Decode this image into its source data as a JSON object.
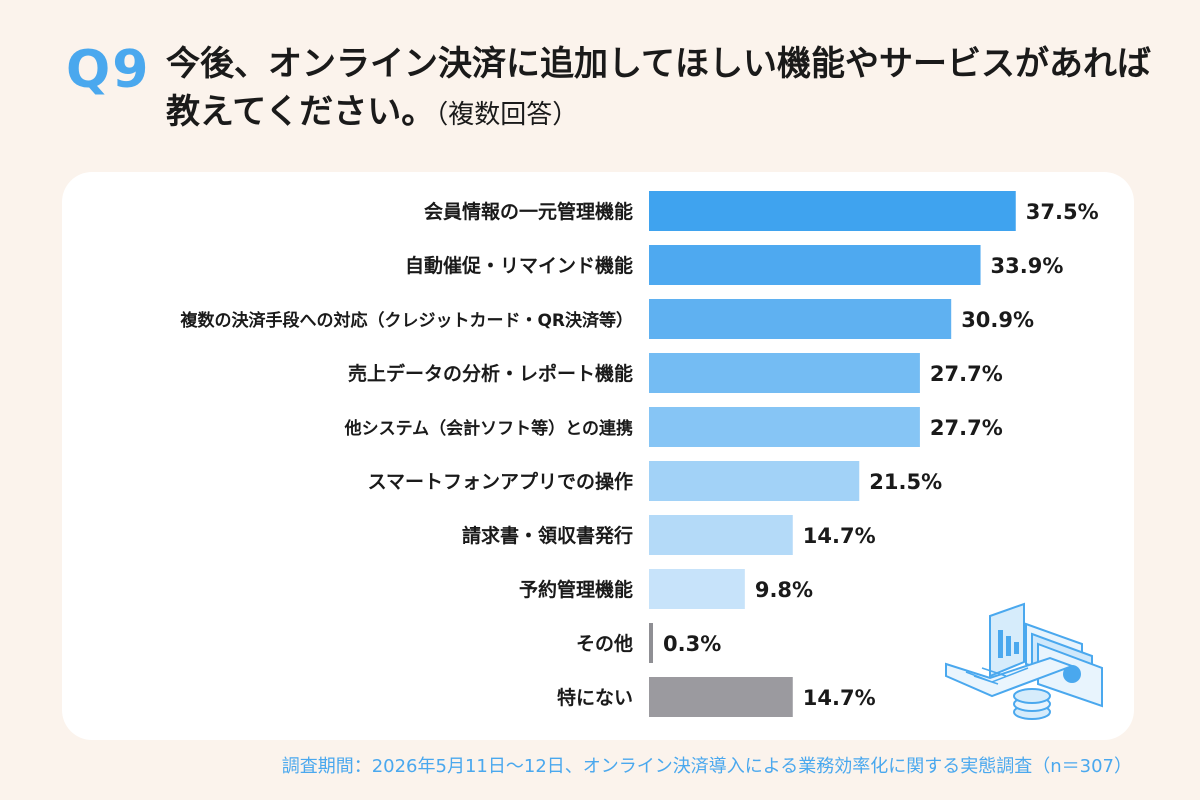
{
  "header": {
    "badge": "Q9",
    "title": "今後、オンライン決済に追加してほしい機能やサービスがあれば教えてください。",
    "note": "（複数回答）"
  },
  "footer": {
    "text": "調査期間：2026年5月11日〜12日、オンライン決済導入による業務効率化に関する実態調査（n＝307）"
  },
  "colors": {
    "accent": "#4aa8ee",
    "bars": [
      "#3fa3ef",
      "#4ea9f0",
      "#5fb1f1",
      "#74bcf3",
      "#86c5f5",
      "#a2d2f7",
      "#b4daf8",
      "#c7e3fa",
      "#8f8f94",
      "#9b9a9f"
    ]
  },
  "chart_data": {
    "type": "bar",
    "orientation": "horizontal",
    "categories": [
      "会員情報の一元管理機能",
      "自動催促・リマインド機能",
      "複数の決済手段への対応（クレジットカード・QR決済等）",
      "売上データの分析・レポート機能",
      "他システム（会計ソフト等）との連携",
      "スマートフォンアプリでの操作",
      "請求書・領収書発行",
      "予約管理機能",
      "その他",
      "特にない"
    ],
    "values": [
      37.5,
      33.9,
      30.9,
      27.7,
      27.7,
      21.5,
      14.7,
      9.8,
      0.3,
      14.7
    ],
    "value_labels": [
      "37.5%",
      "33.9%",
      "30.9%",
      "27.7%",
      "27.7%",
      "21.5%",
      "14.7%",
      "9.8%",
      "0.3%",
      "14.7%"
    ],
    "xlim": [
      0,
      50
    ],
    "grid": false
  }
}
